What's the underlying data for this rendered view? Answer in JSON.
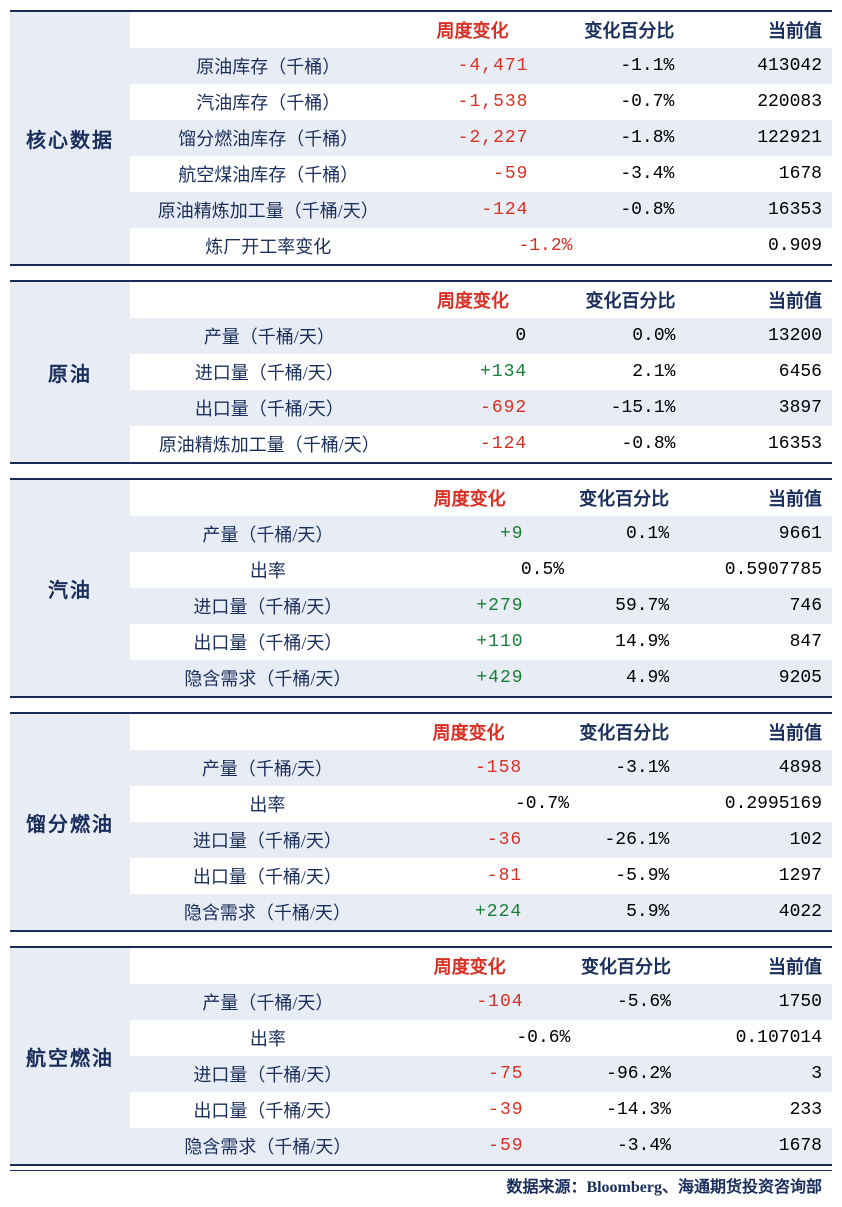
{
  "headers": {
    "change": "周度变化",
    "pct": "变化百分比",
    "current": "当前值"
  },
  "source": "数据来源：Bloomberg、海通期货投资咨询部",
  "colors": {
    "neg": "#d93025",
    "pos": "#188038",
    "header": "#1a2e5c",
    "alt_bg": "#e8ecf4",
    "bg": "#ffffff"
  },
  "sections": [
    {
      "label": "核心数据",
      "rows": [
        {
          "name": "原油库存（千桶）",
          "change": "-4,471",
          "sign": "neg",
          "pct": "-1.1%",
          "cur": "413042"
        },
        {
          "name": "汽油库存（千桶）",
          "change": "-1,538",
          "sign": "neg",
          "pct": "-0.7%",
          "cur": "220083"
        },
        {
          "name": "馏分燃油库存（千桶）",
          "change": "-2,227",
          "sign": "neg",
          "pct": "-1.8%",
          "cur": "122921"
        },
        {
          "name": "航空煤油库存（千桶）",
          "change": "-59",
          "sign": "neg",
          "pct": "-3.4%",
          "cur": "1678"
        },
        {
          "name": "原油精炼加工量（千桶/天）",
          "change": "-124",
          "sign": "neg",
          "pct": "-0.8%",
          "cur": "16353"
        },
        {
          "name": "炼厂开工率变化",
          "merged": "-1.2%",
          "merged_sign": "neg",
          "cur": "0.909"
        }
      ]
    },
    {
      "label": "原油",
      "rows": [
        {
          "name": "产量（千桶/天）",
          "change": "0",
          "sign": "",
          "pct": "0.0%",
          "cur": "13200"
        },
        {
          "name": "进口量（千桶/天）",
          "change": "+134",
          "sign": "pos",
          "pct": "2.1%",
          "cur": "6456"
        },
        {
          "name": "出口量（千桶/天）",
          "change": "-692",
          "sign": "neg",
          "pct": "-15.1%",
          "cur": "3897"
        },
        {
          "name": "原油精炼加工量（千桶/天）",
          "change": "-124",
          "sign": "neg",
          "pct": "-0.8%",
          "cur": "16353"
        }
      ]
    },
    {
      "label": "汽油",
      "rows": [
        {
          "name": "产量（千桶/天）",
          "change": "+9",
          "sign": "pos",
          "pct": "0.1%",
          "cur": "9661"
        },
        {
          "name": "出率",
          "merged": "0.5%",
          "merged_sign": "",
          "cur": "0.5907785"
        },
        {
          "name": "进口量（千桶/天）",
          "change": "+279",
          "sign": "pos",
          "pct": "59.7%",
          "cur": "746"
        },
        {
          "name": "出口量（千桶/天）",
          "change": "+110",
          "sign": "pos",
          "pct": "14.9%",
          "cur": "847"
        },
        {
          "name": "隐含需求（千桶/天）",
          "change": "+429",
          "sign": "pos",
          "pct": "4.9%",
          "cur": "9205"
        }
      ]
    },
    {
      "label": "馏分燃油",
      "rows": [
        {
          "name": "产量（千桶/天）",
          "change": "-158",
          "sign": "neg",
          "pct": "-3.1%",
          "cur": "4898"
        },
        {
          "name": "出率",
          "merged": "-0.7%",
          "merged_sign": "",
          "cur": "0.2995169"
        },
        {
          "name": "进口量（千桶/天）",
          "change": "-36",
          "sign": "neg",
          "pct": "-26.1%",
          "cur": "102"
        },
        {
          "name": "出口量（千桶/天）",
          "change": "-81",
          "sign": "neg",
          "pct": "-5.9%",
          "cur": "1297"
        },
        {
          "name": "隐含需求（千桶/天）",
          "change": "+224",
          "sign": "pos",
          "pct": "5.9%",
          "cur": "4022"
        }
      ]
    },
    {
      "label": "航空燃油",
      "rows": [
        {
          "name": "产量（千桶/天）",
          "change": "-104",
          "sign": "neg",
          "pct": "-5.6%",
          "cur": "1750"
        },
        {
          "name": "出率",
          "merged": "-0.6%",
          "merged_sign": "",
          "cur": "0.107014"
        },
        {
          "name": "进口量（千桶/天）",
          "change": "-75",
          "sign": "neg",
          "pct": "-96.2%",
          "cur": "3"
        },
        {
          "name": "出口量（千桶/天）",
          "change": "-39",
          "sign": "neg",
          "pct": "-14.3%",
          "cur": "233"
        },
        {
          "name": "隐含需求（千桶/天）",
          "change": "-59",
          "sign": "neg",
          "pct": "-3.4%",
          "cur": "1678"
        }
      ]
    }
  ]
}
